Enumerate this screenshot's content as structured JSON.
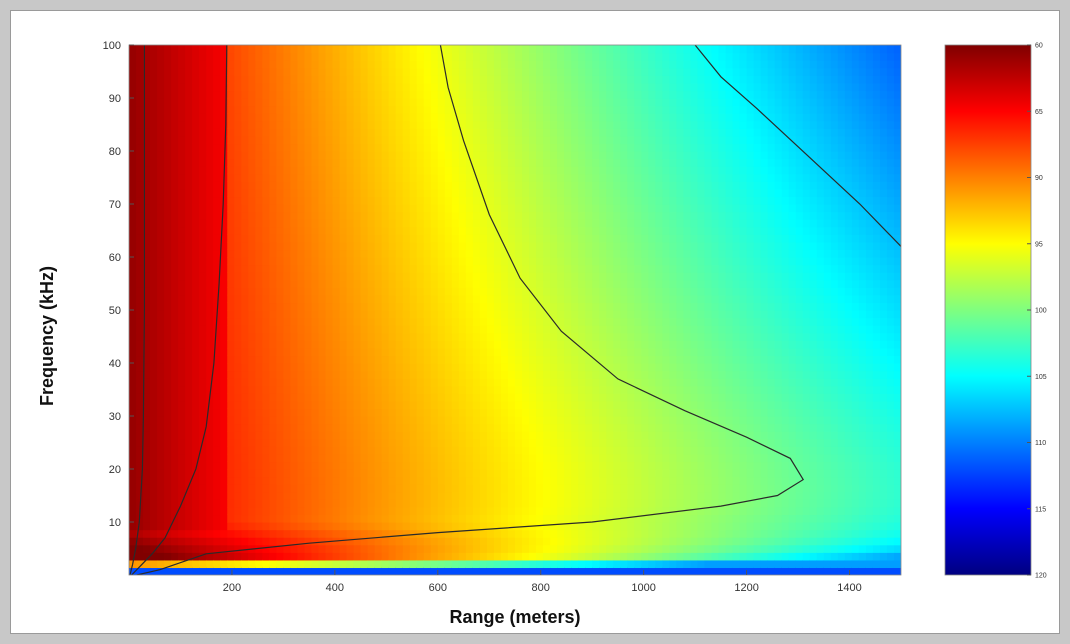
{
  "chart_data": {
    "type": "heatmap",
    "xlabel": "Range (meters)",
    "ylabel": "Frequency (kHz)",
    "xlim": [
      0,
      1500
    ],
    "ylim": [
      0,
      100
    ],
    "x_ticks": [
      200,
      400,
      600,
      800,
      1000,
      1200,
      1400
    ],
    "x_tick_labels": [
      "200",
      "400",
      "600",
      "800",
      "1000",
      "1200",
      "1400"
    ],
    "y_ticks": [
      10,
      20,
      30,
      40,
      50,
      60,
      70,
      80,
      90,
      100
    ],
    "y_tick_labels": [
      "10",
      "20",
      "30",
      "40",
      "50",
      "60",
      "70",
      "80",
      "90",
      "100"
    ],
    "colorbar": {
      "ticks": [
        60,
        65,
        90,
        95,
        100,
        105,
        110,
        115,
        120
      ],
      "tick_labels": [
        "60",
        "65",
        "90",
        "95",
        "100",
        "105",
        "110",
        "115",
        "120"
      ],
      "range_top": 60,
      "range_bottom": 120,
      "colormap": "jet (dark red at top, dark blue at bottom)"
    },
    "contours": [
      {
        "name": "c1",
        "points": [
          [
            2,
            0
          ],
          [
            7,
            2
          ],
          [
            13,
            5
          ],
          [
            20,
            10
          ],
          [
            26,
            20
          ],
          [
            28,
            30
          ],
          [
            30,
            50
          ],
          [
            30,
            70
          ],
          [
            30,
            100
          ]
        ]
      },
      {
        "name": "c2",
        "points": [
          [
            5,
            0
          ],
          [
            25,
            2
          ],
          [
            45,
            4
          ],
          [
            70,
            7
          ],
          [
            100,
            13
          ],
          [
            130,
            20
          ],
          [
            150,
            28
          ],
          [
            165,
            40
          ],
          [
            175,
            55
          ],
          [
            183,
            70
          ],
          [
            188,
            85
          ],
          [
            190,
            100
          ]
        ]
      },
      {
        "name": "c3",
        "points": [
          [
            15,
            0
          ],
          [
            60,
            1
          ],
          [
            150,
            4
          ],
          [
            350,
            6
          ],
          [
            600,
            8
          ],
          [
            900,
            10
          ],
          [
            1150,
            13
          ],
          [
            1260,
            15
          ],
          [
            1310,
            18
          ],
          [
            1285,
            22
          ],
          [
            1200,
            26
          ],
          [
            1080,
            31
          ],
          [
            950,
            37
          ],
          [
            840,
            46
          ],
          [
            760,
            56
          ],
          [
            700,
            68
          ],
          [
            650,
            82
          ],
          [
            620,
            92
          ],
          [
            605,
            100
          ]
        ]
      },
      {
        "name": "c4",
        "points": [
          [
            1100,
            100
          ],
          [
            1150,
            94
          ],
          [
            1220,
            88
          ],
          [
            1320,
            79
          ],
          [
            1420,
            70
          ],
          [
            1500,
            62
          ]
        ]
      }
    ]
  }
}
